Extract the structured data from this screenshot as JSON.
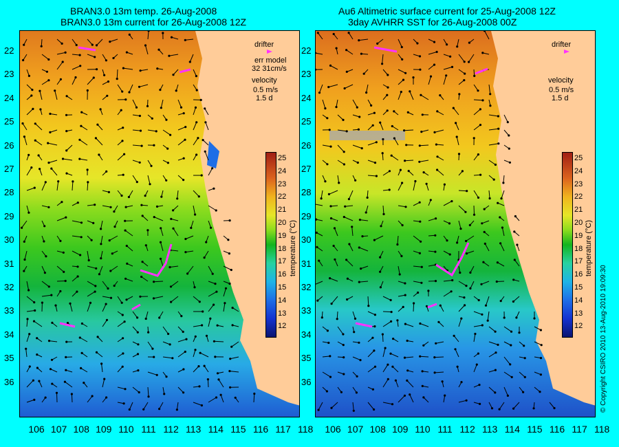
{
  "left": {
    "title1": "BRAN3.0 13m temp. 26-Aug-2008",
    "title2": "BRAN3.0 13m current for 26-Aug-2008 12Z",
    "legend_drifter": "drifter",
    "legend_err1": "err model",
    "legend_err2": "32 31cm/s",
    "legend_velocity": "velocity",
    "legend_vel_scale": "0.5 m/s",
    "legend_vel_time": "1.5 d"
  },
  "right": {
    "title1": "Au6 Altimetric surface current for 25-Aug-2008 12Z",
    "title2": "3day AVHRR SST for 26-Aug-2008 00Z",
    "legend_drifter": "drifter",
    "legend_velocity": "velocity",
    "legend_vel_scale": "0.5 m/s",
    "legend_vel_time": "1.5 d"
  },
  "colorbar_label": "temperature (°C)",
  "colorbar_ticks": [
    "25",
    "24",
    "23",
    "22",
    "21",
    "20",
    "19",
    "18",
    "17",
    "16",
    "15",
    "14",
    "13",
    "12"
  ],
  "latitudes": [
    "22",
    "23",
    "24",
    "25",
    "26",
    "27",
    "28",
    "29",
    "30",
    "31",
    "32",
    "33",
    "34",
    "35",
    "36"
  ],
  "longitudes": [
    "106",
    "107",
    "108",
    "109",
    "110",
    "111",
    "112",
    "113",
    "114",
    "115",
    "116",
    "117",
    "118"
  ],
  "copyright": "© Copyright CSIRO 2010   13-Aug-2010 19:09:30",
  "colors": {
    "background": "#00ffff",
    "land": "#ffcc99",
    "drifter": "#ff33ff"
  }
}
